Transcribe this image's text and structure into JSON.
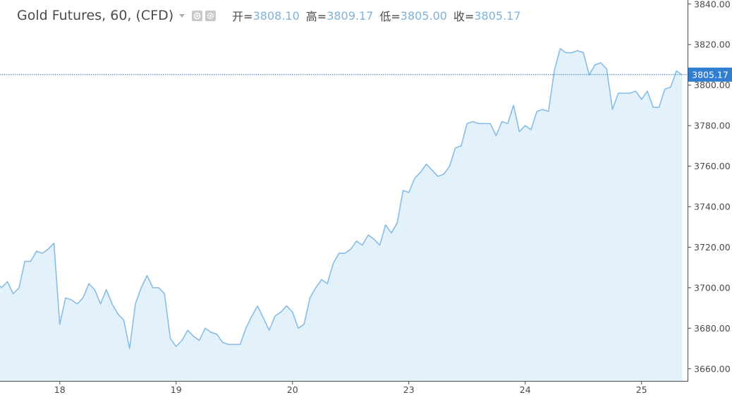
{
  "chart_data": {
    "type": "area",
    "symbol": "Gold Futures",
    "interval": "60",
    "source": "CFD",
    "ohlc": [
      {
        "label": "开=",
        "value": "3808.10"
      },
      {
        "label": "高=",
        "value": "3809.17"
      },
      {
        "label": "低=",
        "value": "3805.00"
      },
      {
        "label": "收=",
        "value": "3805.17"
      }
    ],
    "current_price": 3805.17,
    "current_price_label": "3805.17",
    "ylim": [
      3654,
      3842
    ],
    "y_ticks": [
      3660,
      3680,
      3700,
      3720,
      3740,
      3760,
      3780,
      3800,
      3820,
      3840
    ],
    "x_ticks": [
      {
        "label": "18",
        "index": 11
      },
      {
        "label": "19",
        "index": 31
      },
      {
        "label": "20",
        "index": 51
      },
      {
        "label": "23",
        "index": 71
      },
      {
        "label": "24",
        "index": 91
      },
      {
        "label": "25",
        "index": 111
      }
    ],
    "values": [
      3703,
      3700,
      3703,
      3697,
      3700,
      3713,
      3713,
      3718,
      3717,
      3719,
      3722,
      3682,
      3695,
      3694,
      3692,
      3695,
      3702,
      3699,
      3692,
      3699,
      3692,
      3687,
      3684,
      3670,
      3692,
      3700,
      3706,
      3700,
      3700,
      3697,
      3675,
      3671,
      3674,
      3679,
      3676,
      3674,
      3680,
      3678,
      3677,
      3673,
      3672,
      3672,
      3672,
      3680,
      3686,
      3691,
      3685,
      3679,
      3686,
      3688,
      3691,
      3688,
      3680,
      3682,
      3695,
      3700,
      3704,
      3702,
      3712,
      3717,
      3717,
      3719,
      3723,
      3721,
      3726,
      3724,
      3721,
      3731,
      3727,
      3732,
      3748,
      3747,
      3754,
      3757,
      3761,
      3758,
      3755,
      3756,
      3760,
      3769,
      3770,
      3781,
      3782,
      3781,
      3781,
      3781,
      3775,
      3782,
      3781,
      3790,
      3777,
      3780,
      3778,
      3787,
      3788,
      3787,
      3807,
      3818,
      3816,
      3816,
      3817,
      3816,
      3805,
      3810,
      3811,
      3808,
      3788,
      3796,
      3796,
      3796,
      3797,
      3793,
      3797,
      3789,
      3789,
      3798,
      3799,
      3807,
      3805
    ]
  }
}
